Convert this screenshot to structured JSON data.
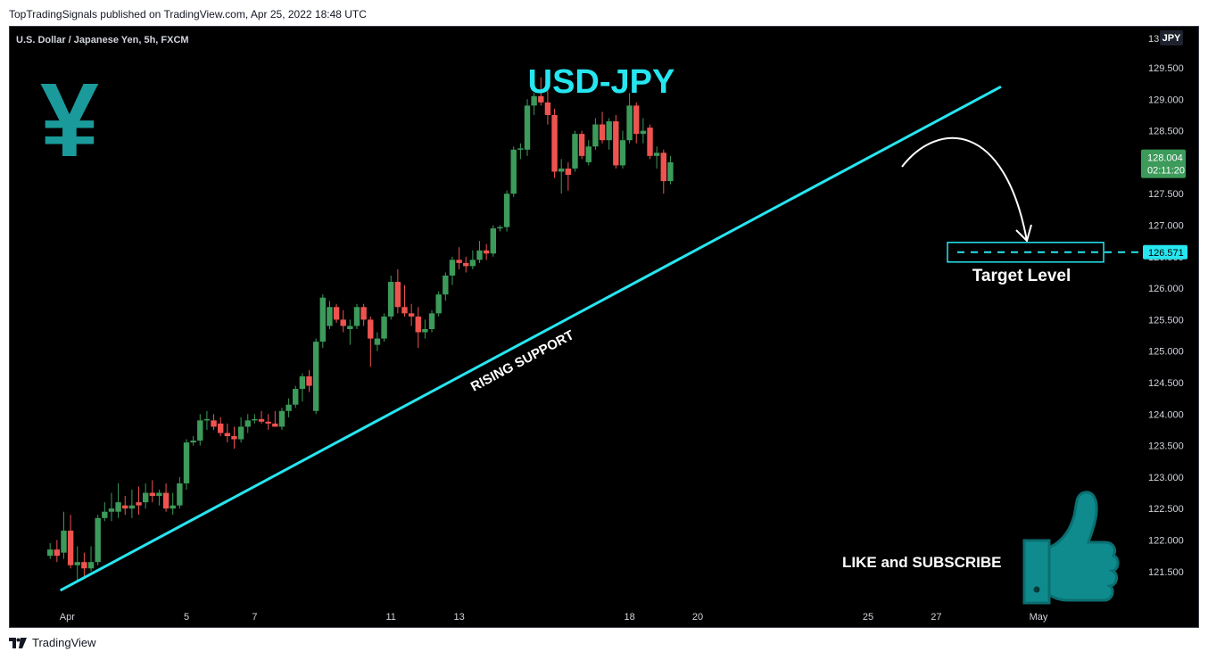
{
  "header": {
    "published": "TopTradingSignals published on TradingView.com, Apr 25, 2022 18:48 UTC"
  },
  "footer": {
    "brand": "TradingView"
  },
  "icons": {
    "currency_symbol": "¥",
    "like_icon": "thumbs-up-icon",
    "brand_icon": "tradingview-logo-icon"
  },
  "colors": {
    "background": "#000000",
    "bull": "#26a69a",
    "bull_body": "#3c9a5a",
    "bear": "#ef5350",
    "trendline": "#26e6f0",
    "yen": "#1a9a9a",
    "title": "#26e6f0",
    "axis_text": "#d1d4dc",
    "last_price_bg": "#3c9a5a",
    "target_bg": "#26e6f0"
  },
  "chart_data": {
    "type": "candlestick",
    "symbol_line": "U.S. Dollar / Japanese Yen, 5h, FXCM",
    "currency_badge": "JPY",
    "title": "USD-JPY",
    "price_axis": {
      "ylim": [
        121.0,
        130.3
      ],
      "ticks": [
        "129.500",
        "129.000",
        "128.500",
        "128.000",
        "127.500",
        "127.000",
        "126.500",
        "126.000",
        "125.500",
        "125.000",
        "124.500",
        "124.000",
        "123.500",
        "123.000",
        "122.500",
        "122.000",
        "121.500"
      ],
      "top_partial_tick": "13"
    },
    "time_axis": {
      "labels": [
        {
          "text": "Apr",
          "day": 1.5
        },
        {
          "text": "5",
          "day": 5
        },
        {
          "text": "7",
          "day": 7
        },
        {
          "text": "11",
          "day": 11
        },
        {
          "text": "13",
          "day": 13
        },
        {
          "text": "18",
          "day": 18
        },
        {
          "text": "20",
          "day": 20
        },
        {
          "text": "25",
          "day": 25
        },
        {
          "text": "27",
          "day": 27
        },
        {
          "text": "May",
          "day": 30
        }
      ]
    },
    "last_price": {
      "value": 128.004,
      "label": "128.004",
      "countdown": "02:11:20"
    },
    "target": {
      "value": 126.571,
      "label": "126.571",
      "text": "Target Level"
    },
    "annotations": {
      "support_label": "RISING SUPPORT",
      "cta": "LIKE and SUBSCRIBE"
    },
    "trendline": {
      "start": {
        "day": 1.3,
        "price": 121.2
      },
      "end": {
        "day": 28.9,
        "price": 129.2
      }
    },
    "candles": [
      {
        "day": 1.0,
        "o": 121.75,
        "h": 121.95,
        "l": 121.7,
        "c": 121.85
      },
      {
        "day": 1.2,
        "o": 121.85,
        "h": 122.0,
        "l": 121.65,
        "c": 121.75
      },
      {
        "day": 1.4,
        "o": 121.8,
        "h": 122.45,
        "l": 121.7,
        "c": 122.15
      },
      {
        "day": 1.6,
        "o": 122.15,
        "h": 122.4,
        "l": 121.55,
        "c": 121.6
      },
      {
        "day": 1.8,
        "o": 121.6,
        "h": 121.9,
        "l": 121.35,
        "c": 121.65
      },
      {
        "day": 2.0,
        "o": 121.65,
        "h": 121.8,
        "l": 121.4,
        "c": 121.55
      },
      {
        "day": 2.2,
        "o": 121.55,
        "h": 121.9,
        "l": 121.5,
        "c": 121.65
      },
      {
        "day": 2.4,
        "o": 121.65,
        "h": 122.4,
        "l": 121.6,
        "c": 122.35
      },
      {
        "day": 2.6,
        "o": 122.35,
        "h": 122.6,
        "l": 122.3,
        "c": 122.45
      },
      {
        "day": 2.8,
        "o": 122.45,
        "h": 122.75,
        "l": 122.3,
        "c": 122.5
      },
      {
        "day": 3.0,
        "o": 122.45,
        "h": 122.9,
        "l": 122.35,
        "c": 122.6
      },
      {
        "day": 3.2,
        "o": 122.55,
        "h": 122.7,
        "l": 122.4,
        "c": 122.5
      },
      {
        "day": 3.4,
        "o": 122.5,
        "h": 122.8,
        "l": 122.35,
        "c": 122.55
      },
      {
        "day": 3.6,
        "o": 122.6,
        "h": 122.85,
        "l": 122.4,
        "c": 122.55
      },
      {
        "day": 3.8,
        "o": 122.6,
        "h": 122.9,
        "l": 122.5,
        "c": 122.75
      },
      {
        "day": 4.0,
        "o": 122.75,
        "h": 122.95,
        "l": 122.6,
        "c": 122.7
      },
      {
        "day": 4.2,
        "o": 122.7,
        "h": 122.8,
        "l": 122.55,
        "c": 122.75
      },
      {
        "day": 4.4,
        "o": 122.75,
        "h": 122.9,
        "l": 122.45,
        "c": 122.5
      },
      {
        "day": 4.6,
        "o": 122.5,
        "h": 122.75,
        "l": 122.4,
        "c": 122.55
      },
      {
        "day": 4.8,
        "o": 122.55,
        "h": 123.0,
        "l": 122.5,
        "c": 122.9
      },
      {
        "day": 5.0,
        "o": 122.9,
        "h": 123.6,
        "l": 122.8,
        "c": 123.55
      },
      {
        "day": 5.2,
        "o": 123.55,
        "h": 123.65,
        "l": 123.5,
        "c": 123.58
      },
      {
        "day": 5.4,
        "o": 123.58,
        "h": 124.0,
        "l": 123.5,
        "c": 123.9
      },
      {
        "day": 5.6,
        "o": 123.9,
        "h": 124.05,
        "l": 123.75,
        "c": 123.92
      },
      {
        "day": 5.8,
        "o": 123.9,
        "h": 124.0,
        "l": 123.75,
        "c": 123.8
      },
      {
        "day": 6.0,
        "o": 123.85,
        "h": 123.95,
        "l": 123.65,
        "c": 123.7
      },
      {
        "day": 6.2,
        "o": 123.7,
        "h": 123.85,
        "l": 123.55,
        "c": 123.65
      },
      {
        "day": 6.4,
        "o": 123.65,
        "h": 123.8,
        "l": 123.45,
        "c": 123.6
      },
      {
        "day": 6.6,
        "o": 123.6,
        "h": 123.95,
        "l": 123.55,
        "c": 123.8
      },
      {
        "day": 6.8,
        "o": 123.8,
        "h": 124.0,
        "l": 123.7,
        "c": 123.9
      },
      {
        "day": 7.0,
        "o": 123.9,
        "h": 124.0,
        "l": 123.85,
        "c": 123.92
      },
      {
        "day": 7.2,
        "o": 123.92,
        "h": 124.05,
        "l": 123.85,
        "c": 123.88
      },
      {
        "day": 7.4,
        "o": 123.88,
        "h": 124.0,
        "l": 123.75,
        "c": 123.85
      },
      {
        "day": 7.6,
        "o": 123.85,
        "h": 124.05,
        "l": 123.8,
        "c": 123.8
      },
      {
        "day": 7.8,
        "o": 123.8,
        "h": 124.1,
        "l": 123.75,
        "c": 124.05
      },
      {
        "day": 8.0,
        "o": 124.05,
        "h": 124.25,
        "l": 123.95,
        "c": 124.15
      },
      {
        "day": 8.2,
        "o": 124.15,
        "h": 124.45,
        "l": 124.1,
        "c": 124.4
      },
      {
        "day": 8.4,
        "o": 124.4,
        "h": 124.65,
        "l": 124.2,
        "c": 124.6
      },
      {
        "day": 8.6,
        "o": 124.6,
        "h": 124.7,
        "l": 124.35,
        "c": 124.45
      },
      {
        "day": 8.8,
        "o": 124.05,
        "h": 125.2,
        "l": 124.0,
        "c": 125.15
      },
      {
        "day": 9.0,
        "o": 125.15,
        "h": 125.9,
        "l": 125.05,
        "c": 125.85
      },
      {
        "day": 9.2,
        "o": 125.4,
        "h": 125.8,
        "l": 125.35,
        "c": 125.7
      },
      {
        "day": 9.4,
        "o": 125.7,
        "h": 125.75,
        "l": 125.45,
        "c": 125.5
      },
      {
        "day": 9.6,
        "o": 125.5,
        "h": 125.65,
        "l": 125.3,
        "c": 125.4
      },
      {
        "day": 9.8,
        "o": 125.35,
        "h": 125.5,
        "l": 125.1,
        "c": 125.4
      },
      {
        "day": 10.0,
        "o": 125.4,
        "h": 125.75,
        "l": 125.35,
        "c": 125.7
      },
      {
        "day": 10.2,
        "o": 125.7,
        "h": 125.75,
        "l": 125.4,
        "c": 125.5
      },
      {
        "day": 10.4,
        "o": 125.5,
        "h": 125.55,
        "l": 124.75,
        "c": 125.2
      },
      {
        "day": 10.6,
        "o": 125.1,
        "h": 125.3,
        "l": 125.0,
        "c": 125.2
      },
      {
        "day": 10.8,
        "o": 125.2,
        "h": 125.6,
        "l": 125.15,
        "c": 125.55
      },
      {
        "day": 11.0,
        "o": 125.55,
        "h": 126.2,
        "l": 125.5,
        "c": 126.1
      },
      {
        "day": 11.2,
        "o": 126.1,
        "h": 126.3,
        "l": 125.6,
        "c": 125.7
      },
      {
        "day": 11.4,
        "o": 125.7,
        "h": 126.05,
        "l": 125.55,
        "c": 125.6
      },
      {
        "day": 11.6,
        "o": 125.6,
        "h": 125.75,
        "l": 125.4,
        "c": 125.55
      },
      {
        "day": 11.8,
        "o": 125.55,
        "h": 125.7,
        "l": 125.05,
        "c": 125.3
      },
      {
        "day": 12.0,
        "o": 125.3,
        "h": 125.5,
        "l": 125.2,
        "c": 125.35
      },
      {
        "day": 12.2,
        "o": 125.35,
        "h": 125.65,
        "l": 125.3,
        "c": 125.6
      },
      {
        "day": 12.4,
        "o": 125.6,
        "h": 125.95,
        "l": 125.55,
        "c": 125.9
      },
      {
        "day": 12.6,
        "o": 125.9,
        "h": 126.25,
        "l": 125.8,
        "c": 126.2
      },
      {
        "day": 12.8,
        "o": 126.2,
        "h": 126.5,
        "l": 126.05,
        "c": 126.45
      },
      {
        "day": 13.0,
        "o": 126.45,
        "h": 126.65,
        "l": 126.3,
        "c": 126.4
      },
      {
        "day": 13.2,
        "o": 126.4,
        "h": 126.5,
        "l": 126.25,
        "c": 126.35
      },
      {
        "day": 13.4,
        "o": 126.35,
        "h": 126.6,
        "l": 126.3,
        "c": 126.45
      },
      {
        "day": 13.6,
        "o": 126.45,
        "h": 126.75,
        "l": 126.4,
        "c": 126.6
      },
      {
        "day": 13.8,
        "o": 126.6,
        "h": 126.7,
        "l": 126.45,
        "c": 126.55
      },
      {
        "day": 14.0,
        "o": 126.55,
        "h": 127.0,
        "l": 126.5,
        "c": 126.95
      },
      {
        "day": 14.2,
        "o": 126.95,
        "h": 127.0,
        "l": 126.9,
        "c": 126.97
      },
      {
        "day": 14.4,
        "o": 126.97,
        "h": 127.55,
        "l": 126.9,
        "c": 127.5
      },
      {
        "day": 14.6,
        "o": 127.5,
        "h": 128.25,
        "l": 127.45,
        "c": 128.2
      },
      {
        "day": 14.8,
        "o": 128.2,
        "h": 128.3,
        "l": 128.05,
        "c": 128.22
      },
      {
        "day": 15.0,
        "o": 128.2,
        "h": 129.0,
        "l": 128.1,
        "c": 128.9
      },
      {
        "day": 15.2,
        "o": 128.9,
        "h": 129.1,
        "l": 128.75,
        "c": 129.05
      },
      {
        "day": 15.4,
        "o": 129.05,
        "h": 129.35,
        "l": 128.9,
        "c": 128.95
      },
      {
        "day": 15.6,
        "o": 128.95,
        "h": 129.2,
        "l": 128.6,
        "c": 128.75
      },
      {
        "day": 15.8,
        "o": 128.75,
        "h": 128.85,
        "l": 127.75,
        "c": 127.85
      },
      {
        "day": 16.0,
        "o": 127.85,
        "h": 128.05,
        "l": 127.5,
        "c": 127.9
      },
      {
        "day": 16.2,
        "o": 127.9,
        "h": 128.0,
        "l": 127.55,
        "c": 127.8
      },
      {
        "day": 16.4,
        "o": 127.9,
        "h": 128.5,
        "l": 127.85,
        "c": 128.45
      },
      {
        "day": 16.6,
        "o": 128.45,
        "h": 128.5,
        "l": 128.05,
        "c": 128.1
      },
      {
        "day": 16.8,
        "o": 128.0,
        "h": 128.35,
        "l": 127.95,
        "c": 128.25
      },
      {
        "day": 17.0,
        "o": 128.25,
        "h": 128.7,
        "l": 128.2,
        "c": 128.6
      },
      {
        "day": 17.2,
        "o": 128.6,
        "h": 128.8,
        "l": 128.3,
        "c": 128.35
      },
      {
        "day": 17.4,
        "o": 128.35,
        "h": 128.7,
        "l": 128.2,
        "c": 128.65
      },
      {
        "day": 17.6,
        "o": 128.65,
        "h": 128.75,
        "l": 127.9,
        "c": 127.95
      },
      {
        "day": 17.8,
        "o": 127.95,
        "h": 128.5,
        "l": 127.9,
        "c": 128.35
      },
      {
        "day": 18.0,
        "o": 128.35,
        "h": 129.1,
        "l": 128.3,
        "c": 128.9
      },
      {
        "day": 18.2,
        "o": 128.9,
        "h": 128.95,
        "l": 128.3,
        "c": 128.45
      },
      {
        "day": 18.4,
        "o": 128.45,
        "h": 128.7,
        "l": 128.3,
        "c": 128.5
      },
      {
        "day": 18.6,
        "o": 128.55,
        "h": 128.6,
        "l": 128.05,
        "c": 128.1
      },
      {
        "day": 18.8,
        "o": 128.1,
        "h": 128.25,
        "l": 127.9,
        "c": 128.15
      },
      {
        "day": 19.0,
        "o": 128.15,
        "h": 128.2,
        "l": 127.5,
        "c": 127.7
      },
      {
        "day": 19.2,
        "o": 127.7,
        "h": 128.1,
        "l": 127.65,
        "c": 128.0
      }
    ]
  }
}
